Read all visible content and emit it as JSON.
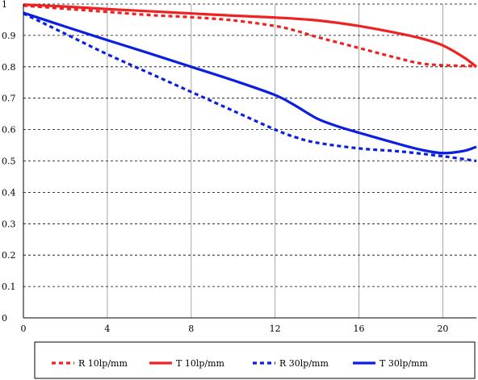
{
  "chart_data": {
    "type": "line",
    "title": "",
    "xlabel": "",
    "ylabel": "",
    "xlim": [
      0,
      21.6
    ],
    "ylim": [
      0,
      1
    ],
    "x_ticks": [
      "0",
      "4",
      "8",
      "12",
      "16",
      "20"
    ],
    "y_ticks": [
      "0",
      "0.1",
      "0.2",
      "0.3",
      "0.4",
      "0.5",
      "0.6",
      "0.7",
      "0.8",
      "0.9",
      "1"
    ],
    "grid": {
      "vertical": "solid-gray",
      "horizontal": "dashed-black"
    },
    "legend_position": "bottom",
    "series": [
      {
        "name": "R 10lp/mm",
        "color": "#ee2222",
        "style": "dashed",
        "points": [
          [
            0,
            0.995
          ],
          [
            2,
            0.985
          ],
          [
            4,
            0.975
          ],
          [
            6,
            0.965
          ],
          [
            8,
            0.958
          ],
          [
            10,
            0.948
          ],
          [
            12,
            0.93
          ],
          [
            13,
            0.915
          ],
          [
            14,
            0.895
          ],
          [
            16,
            0.86
          ],
          [
            18,
            0.825
          ],
          [
            19,
            0.81
          ],
          [
            20,
            0.805
          ],
          [
            21.6,
            0.802
          ]
        ]
      },
      {
        "name": "T 10lp/mm",
        "color": "#ee2222",
        "style": "solid",
        "points": [
          [
            0,
            0.998
          ],
          [
            2,
            0.992
          ],
          [
            4,
            0.984
          ],
          [
            6,
            0.977
          ],
          [
            8,
            0.97
          ],
          [
            10,
            0.963
          ],
          [
            12,
            0.957
          ],
          [
            14,
            0.948
          ],
          [
            16,
            0.93
          ],
          [
            18,
            0.905
          ],
          [
            19,
            0.89
          ],
          [
            20,
            0.868
          ],
          [
            21,
            0.83
          ],
          [
            21.6,
            0.8
          ]
        ]
      },
      {
        "name": "R 30lp/mm",
        "color": "#0a1fe0",
        "style": "dashed",
        "points": [
          [
            0,
            0.97
          ],
          [
            2,
            0.905
          ],
          [
            4,
            0.84
          ],
          [
            6,
            0.78
          ],
          [
            8,
            0.72
          ],
          [
            10,
            0.66
          ],
          [
            12,
            0.6
          ],
          [
            13,
            0.575
          ],
          [
            14,
            0.558
          ],
          [
            16,
            0.54
          ],
          [
            18,
            0.53
          ],
          [
            20,
            0.515
          ],
          [
            21.6,
            0.5
          ]
        ]
      },
      {
        "name": "T 30lp/mm",
        "color": "#0a1fe0",
        "style": "solid",
        "points": [
          [
            0,
            0.972
          ],
          [
            2,
            0.928
          ],
          [
            4,
            0.885
          ],
          [
            6,
            0.843
          ],
          [
            8,
            0.8
          ],
          [
            10,
            0.757
          ],
          [
            12,
            0.71
          ],
          [
            13,
            0.675
          ],
          [
            14,
            0.635
          ],
          [
            15,
            0.61
          ],
          [
            16,
            0.59
          ],
          [
            18,
            0.552
          ],
          [
            19,
            0.535
          ],
          [
            20,
            0.525
          ],
          [
            21,
            0.532
          ],
          [
            21.6,
            0.545
          ]
        ]
      }
    ]
  }
}
